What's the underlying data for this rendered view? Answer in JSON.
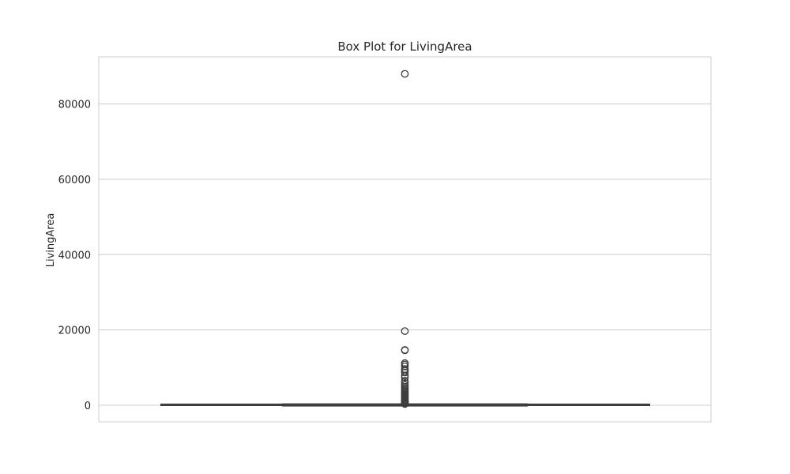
{
  "chart_data": {
    "type": "box",
    "title": "Box Plot for LivingArea",
    "xlabel": "",
    "ylabel": "LivingArea",
    "ylim": [
      -4400,
      92500
    ],
    "yticks": [
      0,
      20000,
      40000,
      60000,
      80000
    ],
    "ytick_labels": [
      "0",
      "20000",
      "40000",
      "60000",
      "80000"
    ],
    "grid": true,
    "legend": "none",
    "box": {
      "whisker_low": 0,
      "q1": 40,
      "median": 80,
      "q3": 140,
      "whisker_high": 290
    },
    "outliers": [
      88000,
      19700,
      14700,
      14600,
      11200,
      10800,
      10300,
      9600,
      9200,
      8700,
      7900,
      7400,
      6500,
      5900,
      5400,
      4900,
      4500,
      4100,
      3800,
      3500,
      3200,
      2900,
      2600,
      2300,
      2000,
      1750,
      1500,
      1300,
      1100,
      950,
      800,
      650,
      520,
      420,
      350
    ],
    "colors": {
      "box_edge": "#3d3d3d",
      "grid": "#cccccc",
      "frame": "#cccccc",
      "box_fill": "#3a6ea5"
    }
  }
}
